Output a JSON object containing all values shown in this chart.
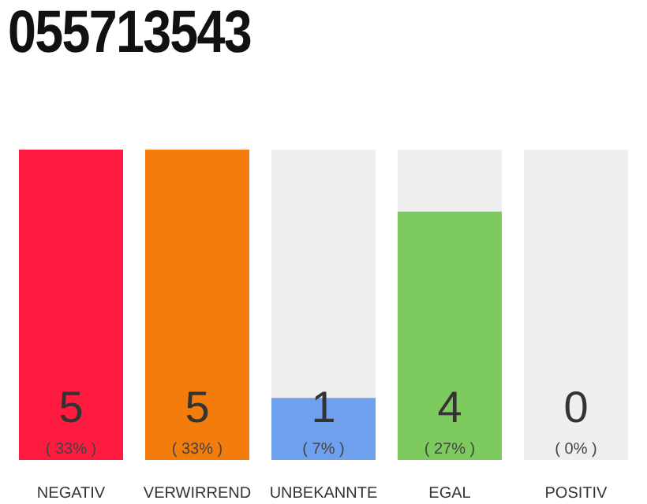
{
  "chart_data": {
    "type": "bar",
    "title": "055713543",
    "categories": [
      "NEGATIV",
      "VERWIRREND",
      "UNBEKANNTE",
      "EGAL",
      "POSITIV"
    ],
    "values": [
      5,
      5,
      1,
      4,
      0
    ],
    "colors": [
      "#ff1a40",
      "#f47c0c",
      "#6fa0ee",
      "#7dcb5f",
      "#9e9e9e"
    ],
    "data_labels": true,
    "annotations": [
      "( 33% )",
      "( 33% )",
      "( 7% )",
      "( 27% )",
      "( 0% )"
    ],
    "tick_labels": "x"
  }
}
